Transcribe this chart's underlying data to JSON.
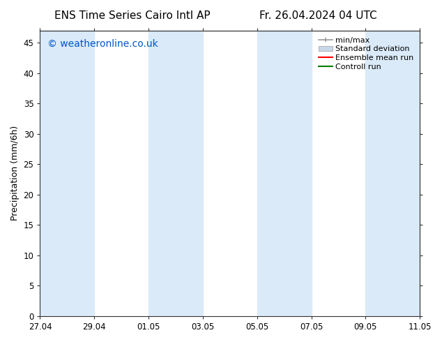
{
  "title_left": "ENS Time Series Cairo Intl AP",
  "title_right": "Fr. 26.04.2024 04 UTC",
  "ylabel": "Precipitation (mm/6h)",
  "watermark": "© weatheronline.co.uk",
  "watermark_color": "#0055cc",
  "ylim": [
    0,
    47
  ],
  "yticks": [
    0,
    5,
    10,
    15,
    20,
    25,
    30,
    35,
    40,
    45
  ],
  "bg_color": "#ffffff",
  "plot_bg_color": "#ffffff",
  "shaded_band_color": "#daeaf8",
  "minmax_color": "#999999",
  "stddev_color": "#c8d8e8",
  "ensemble_mean_color": "#ff0000",
  "control_run_color": "#008000",
  "legend_labels": [
    "min/max",
    "Standard deviation",
    "Ensemble mean run",
    "Controll run"
  ],
  "x_tick_labels": [
    "27.04",
    "29.04",
    "01.05",
    "03.05",
    "05.05",
    "07.05",
    "09.05",
    "11.05"
  ],
  "x_tick_positions": [
    0,
    2,
    4,
    6,
    8,
    10,
    12,
    14
  ],
  "shaded_regions": [
    [
      0,
      2
    ],
    [
      4,
      6
    ],
    [
      8,
      10
    ],
    [
      12,
      14
    ]
  ],
  "title_fontsize": 11,
  "tick_fontsize": 8.5,
  "legend_fontsize": 8,
  "watermark_fontsize": 10
}
